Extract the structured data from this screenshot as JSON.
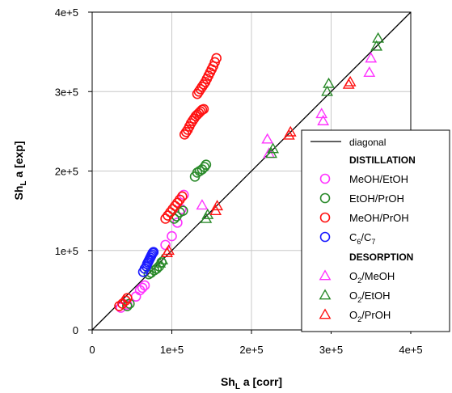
{
  "chart_data": {
    "type": "scatter",
    "xlabel": {
      "main": "Sh",
      "sub": "L",
      "rest": " a [corr]"
    },
    "ylabel": {
      "main": "Sh",
      "sub": "L",
      "rest": " a [exp]"
    },
    "xlim": [
      0,
      400000
    ],
    "ylim": [
      0,
      400000
    ],
    "x_ticks": [
      0,
      100000,
      200000,
      300000,
      400000
    ],
    "x_tick_labels": [
      "0",
      "1e+5",
      "2e+5",
      "3e+5",
      "4e+5"
    ],
    "y_ticks": [
      0,
      100000,
      200000,
      300000,
      400000
    ],
    "y_tick_labels": [
      "0",
      "1e+5",
      "2e+5",
      "3e+5",
      "4e+5"
    ],
    "grid": true,
    "legend_position": "bottom-right",
    "line": {
      "name": "diagonal",
      "x": [
        0,
        400000
      ],
      "y": [
        0,
        400000
      ],
      "color": "#000000"
    },
    "legend_groups": [
      {
        "title": "DISTILLATION",
        "entries": [
          {
            "series": 0,
            "label": "MeOH/EtOH"
          },
          {
            "series": 1,
            "label": "EtOH/PrOH"
          },
          {
            "series": 2,
            "label": "MeOH/PrOH"
          },
          {
            "series": 3,
            "label": "C",
            "sub1": "6",
            "mid": "/C",
            "sub2": "7"
          }
        ]
      },
      {
        "title": "DESORPTION",
        "entries": [
          {
            "series": 4,
            "label": "O",
            "sub1": "2",
            "mid": "/MeOH"
          },
          {
            "series": 5,
            "label": "O",
            "sub1": "2",
            "mid": "/EtOH"
          },
          {
            "series": 6,
            "label": "O",
            "sub1": "2",
            "mid": "/PrOH"
          }
        ]
      }
    ],
    "series": [
      {
        "marker": "circle",
        "color": "#ff33ff",
        "x": [
          36000,
          44000,
          55000,
          60000,
          63000,
          66000,
          92000,
          100000,
          107000,
          112000,
          115000
        ],
        "y": [
          28000,
          32000,
          42000,
          50000,
          53000,
          56000,
          107000,
          118000,
          135000,
          152000,
          170000
        ]
      },
      {
        "marker": "circle",
        "color": "#2a8a2a",
        "x": [
          44000,
          47000,
          71000,
          74000,
          78000,
          81000,
          84000,
          87000,
          103000,
          106000,
          110000,
          114000,
          129000,
          132000,
          135000,
          138000,
          141000,
          143000
        ],
        "y": [
          30000,
          33000,
          70000,
          72000,
          75000,
          77000,
          80000,
          85000,
          140000,
          143000,
          148000,
          150000,
          193000,
          198000,
          200000,
          202000,
          205000,
          208000
        ]
      },
      {
        "marker": "circle",
        "color": "#ff1111",
        "x": [
          34000,
          38000,
          42000,
          44000,
          92000,
          95000,
          98000,
          101000,
          104000,
          107000,
          110000,
          113000,
          116000,
          118000,
          120000,
          122000,
          124000,
          126000,
          128000,
          130000,
          132000,
          134000,
          136000,
          138000,
          140000,
          132000,
          134000,
          136000,
          138000,
          140000,
          142000,
          144000,
          146000,
          148000,
          150000,
          152000,
          154000,
          156000
        ],
        "y": [
          30000,
          33000,
          37000,
          40000,
          140000,
          144000,
          148000,
          152000,
          156000,
          160000,
          164000,
          168000,
          246000,
          249000,
          252000,
          256000,
          260000,
          263000,
          266000,
          269000,
          271000,
          273000,
          275000,
          277000,
          278000,
          297000,
          300000,
          303000,
          306000,
          309000,
          312000,
          316000,
          320000,
          324000,
          328000,
          332000,
          337000,
          342000
        ]
      },
      {
        "marker": "circle",
        "color": "#1a1aff",
        "x": [
          64000,
          66000,
          68000,
          69000,
          70000,
          71000,
          72000,
          73000,
          74000,
          75000,
          76000,
          77000
        ],
        "y": [
          73000,
          77000,
          80000,
          83000,
          85000,
          87000,
          89000,
          91000,
          93000,
          95000,
          97000,
          98000
        ]
      },
      {
        "marker": "triangle",
        "color": "#ff33ff",
        "x": [
          138000,
          220000,
          222000,
          288000,
          290000,
          348000,
          350000
        ],
        "y": [
          157000,
          240000,
          222000,
          272000,
          263000,
          324000,
          342000
        ]
      },
      {
        "marker": "triangle",
        "color": "#2a8a2a",
        "x": [
          85000,
          88000,
          143000,
          145000,
          225000,
          227000,
          295000,
          297000,
          357000,
          359000
        ],
        "y": [
          84000,
          88000,
          140000,
          145000,
          222000,
          228000,
          300000,
          310000,
          357000,
          367000
        ]
      },
      {
        "marker": "triangle",
        "color": "#ff1111",
        "x": [
          94000,
          96000,
          155000,
          157000,
          247000,
          249000,
          322000,
          324000
        ],
        "y": [
          97000,
          100000,
          150000,
          156000,
          245000,
          249000,
          309000,
          312000
        ]
      }
    ]
  }
}
